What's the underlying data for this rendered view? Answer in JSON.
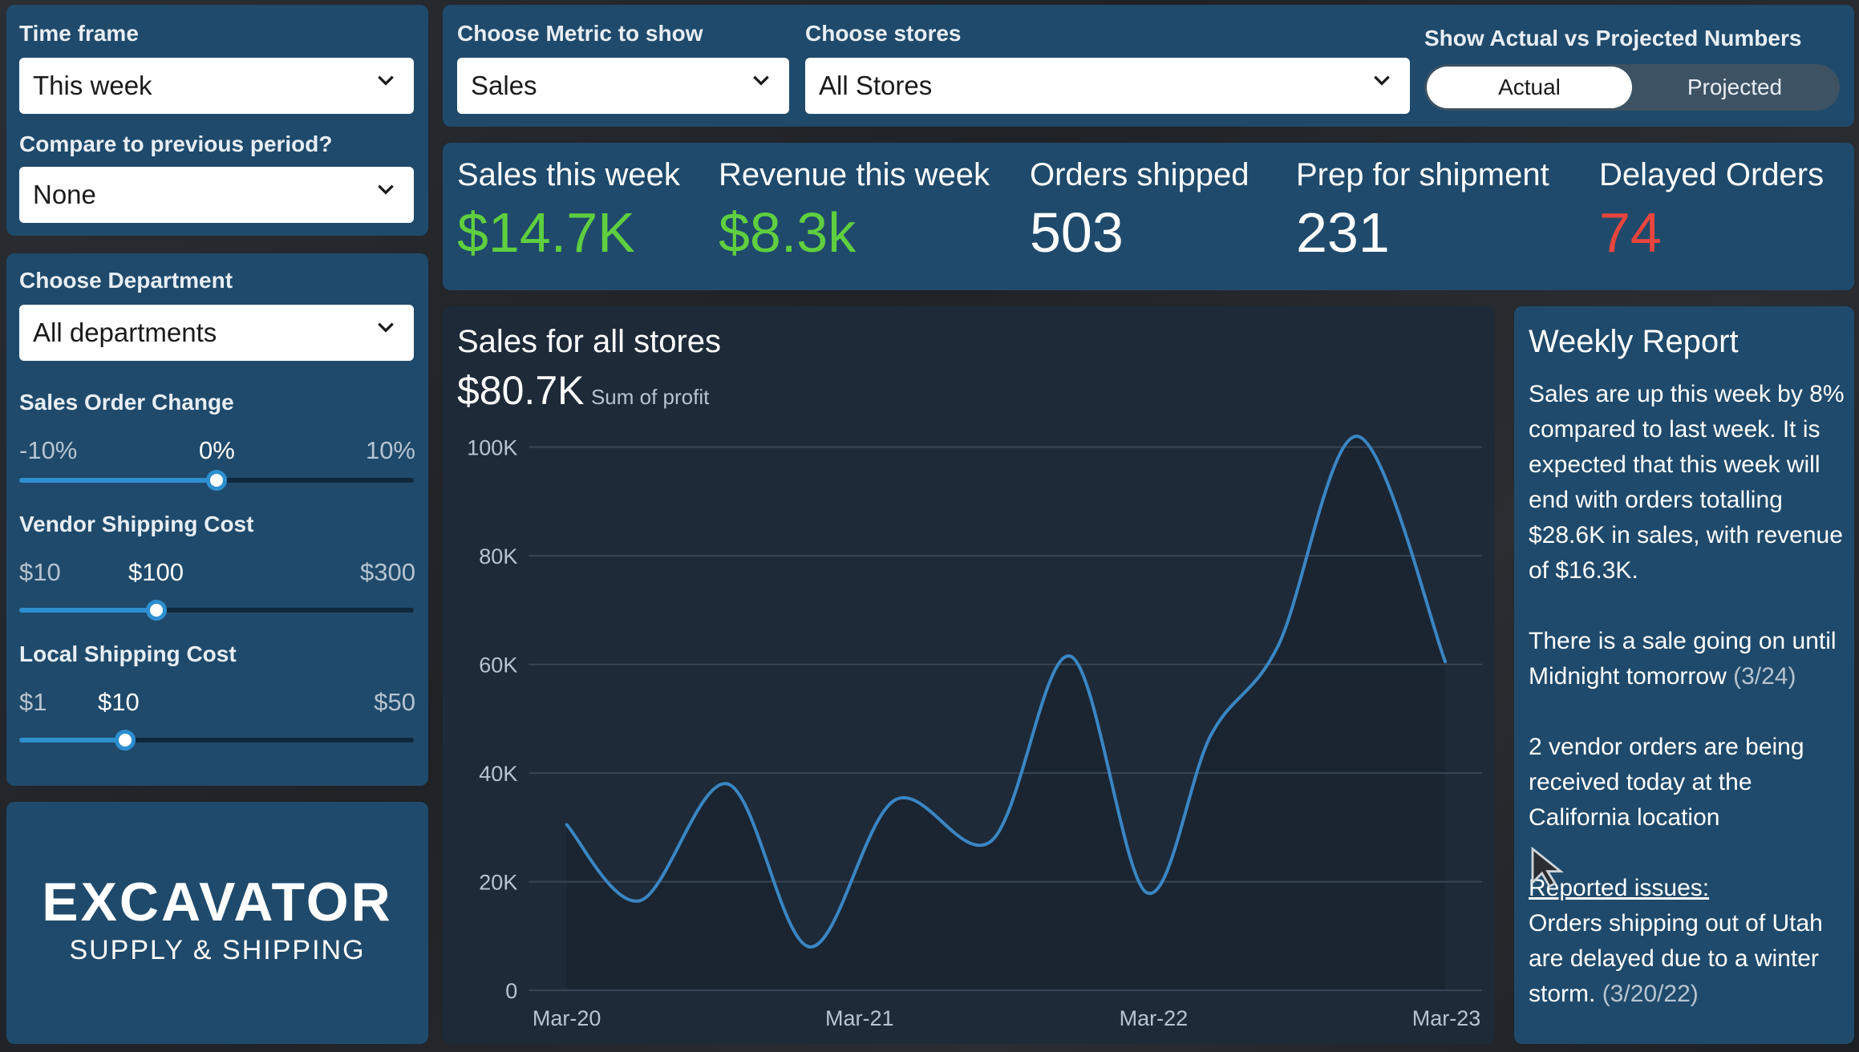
{
  "filters": {
    "time_frame": {
      "label": "Time frame",
      "value": "This week"
    },
    "compare": {
      "label": "Compare to previous period?",
      "value": "None"
    },
    "department": {
      "label": "Choose Department",
      "value": "All departments"
    },
    "metric": {
      "label": "Choose Metric to show",
      "value": "Sales"
    },
    "stores": {
      "label": "Choose stores",
      "value": "All Stores"
    },
    "toggle": {
      "label": "Show Actual vs Projected Numbers",
      "actual": "Actual",
      "projected": "Projected",
      "selected": "Actual"
    }
  },
  "sliders": {
    "sales_order_change": {
      "label": "Sales Order Change",
      "min": "-10%",
      "value": "0%",
      "max": "10%",
      "fraction": 0.5
    },
    "vendor_shipping": {
      "label": "Vendor Shipping Cost",
      "min": "$10",
      "value": "$100",
      "max": "$300",
      "fraction": 0.348
    },
    "local_shipping": {
      "label": "Local Shipping Cost",
      "min": "$1",
      "value": "$10",
      "max": "$50",
      "fraction": 0.268
    }
  },
  "logo": {
    "line1": "EXCAVATOR",
    "line2": "SUPPLY & SHIPPING"
  },
  "kpis": [
    {
      "title": "Sales this week",
      "value": "$14.7K",
      "color": "#5fcf3f"
    },
    {
      "title": "Revenue this week",
      "value": "$8.3k",
      "color": "#5fcf3f"
    },
    {
      "title": "Orders shipped",
      "value": "503",
      "color": "#ffffff"
    },
    {
      "title": "Prep for shipment",
      "value": "231",
      "color": "#ffffff"
    },
    {
      "title": "Delayed Orders",
      "value": "74",
      "color": "#e8453c"
    }
  ],
  "chart": {
    "title": "Sales for all stores",
    "total": "$80.7K",
    "total_caption": "Sum of profit"
  },
  "chart_data": {
    "type": "area",
    "x_tick_labels": [
      "Mar-20",
      "Mar-21",
      "Mar-22",
      "Mar-23"
    ],
    "y_tick_labels": [
      "0",
      "20K",
      "40K",
      "60K",
      "80K",
      "100K"
    ],
    "ylim": [
      0,
      100000
    ],
    "xlim": [
      0,
      3.16
    ],
    "grid": true,
    "line_color": "#3a86c4",
    "series": [
      {
        "points": [
          [
            0,
            30500
          ],
          [
            0.25,
            16500
          ],
          [
            0.55,
            38000
          ],
          [
            0.83,
            8000
          ],
          [
            1.12,
            35000
          ],
          [
            1.45,
            27500
          ],
          [
            1.72,
            61500
          ],
          [
            1.98,
            18000
          ],
          [
            2.2,
            47000
          ],
          [
            2.43,
            63500
          ],
          [
            2.7,
            102000
          ],
          [
            3.0,
            60500
          ]
        ]
      }
    ]
  },
  "report": {
    "title": "Weekly Report",
    "p1": "Sales are up this week by 8% compared to last week. It is expected that this week will end with orders totalling $28.6K in sales, with revenue of $16.3K.",
    "p2": "There is a sale going on until Midnight tomorrow",
    "p2_date": "(3/24)",
    "p3": "2 vendor orders are being received today at the California location",
    "issues_heading": "Reported issues:",
    "p4": "Orders shipping out of Utah are delayed due to a winter storm.",
    "p4_date": "(3/20/22)"
  },
  "colors": {
    "panel": "#1f4a6b",
    "chart_bg": "#1e2a38",
    "accent": "#2d8fcf",
    "positive": "#5fcf3f",
    "negative": "#e8453c"
  }
}
